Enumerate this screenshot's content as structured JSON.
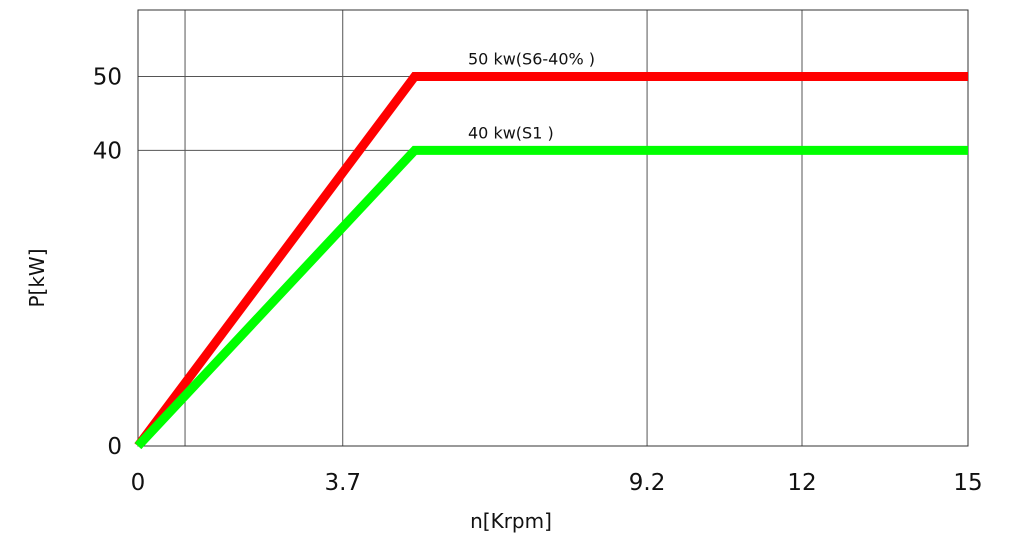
{
  "chart_data": {
    "type": "line",
    "title": "",
    "xlabel": "n[Krpm]",
    "ylabel": "P[kW]",
    "xlim": [
      0,
      15
    ],
    "ylim": [
      0,
      59
    ],
    "x_ticks": [
      0,
      3.7,
      9.2,
      12,
      15
    ],
    "x_tick_labels": [
      "0",
      "3.7",
      "9.2",
      "12",
      "15"
    ],
    "x_grid": [
      0,
      0.85,
      3.7,
      9.2,
      12,
      15
    ],
    "y_ticks": [
      0,
      40,
      50
    ],
    "y_tick_labels": [
      "0",
      "40",
      "50"
    ],
    "grid": true,
    "legend": "none",
    "series": [
      {
        "name": "50 kw(S6-40% )",
        "color": "#ff0000",
        "x": [
          0,
          5,
          15
        ],
        "y": [
          0,
          50,
          50
        ]
      },
      {
        "name": "40 kw(S1 )",
        "color": "#00ff00",
        "x": [
          0,
          5,
          15
        ],
        "y": [
          0,
          40,
          40
        ]
      }
    ]
  }
}
